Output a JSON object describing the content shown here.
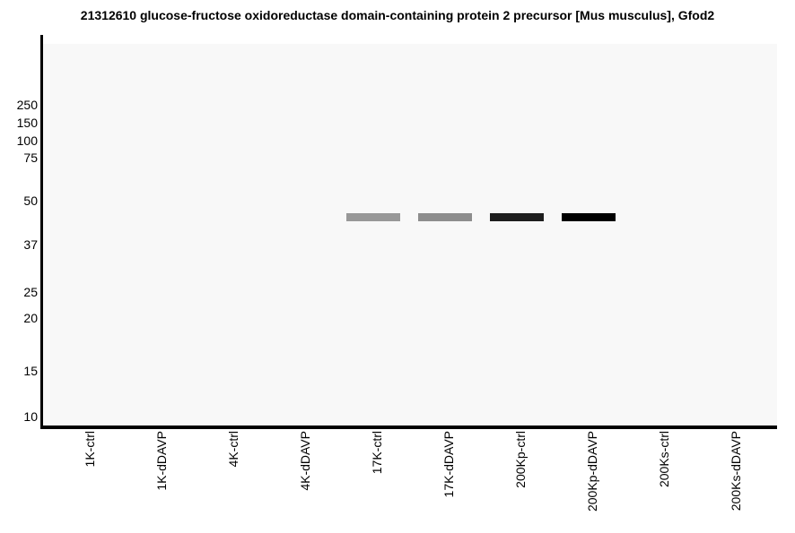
{
  "chart_data": {
    "type": "heatmap",
    "chart_style": "virtual western blot (gel band intensity plot)",
    "title": "21312610 glucose-fructose oxidoreductase domain-containing protein 2 precursor [Mus musculus], Gfod2",
    "lanes": [
      "1K-ctrl",
      "1K-dDAVP",
      "4K-ctrl",
      "4K-dDAVP",
      "17K-ctrl",
      "17K-dDAVP",
      "200Kp-ctrl",
      "200Kp-dDAVP",
      "200Ks-ctrl",
      "200Ks-dDAVP"
    ],
    "y_axis": {
      "tick_values_kda": [
        250,
        150,
        100,
        75,
        50,
        37,
        25,
        20,
        15,
        10
      ],
      "scale": "nonlinear gel-migration (log-like), values in kDa",
      "range_kda": [
        10,
        250
      ]
    },
    "bands": [
      {
        "lane": "17K-ctrl",
        "mw_kda": 44.5,
        "color": "#989898",
        "intensity": "medium"
      },
      {
        "lane": "17K-dDAVP",
        "mw_kda": 44.5,
        "color": "#8d8d8d",
        "intensity": "medium"
      },
      {
        "lane": "200Kp-ctrl",
        "mw_kda": 44.5,
        "color": "#1e1e1e",
        "intensity": "strong"
      },
      {
        "lane": "200Kp-dDAVP",
        "mw_kda": 44.5,
        "color": "#000000",
        "intensity": "strongest"
      }
    ],
    "layout_hints": {
      "grid": false,
      "legend": false,
      "x_labels_rotation_deg": 90
    },
    "colors": {
      "plot_background": "#f8f8f8",
      "axis": "#000000",
      "text": "#000000"
    }
  }
}
